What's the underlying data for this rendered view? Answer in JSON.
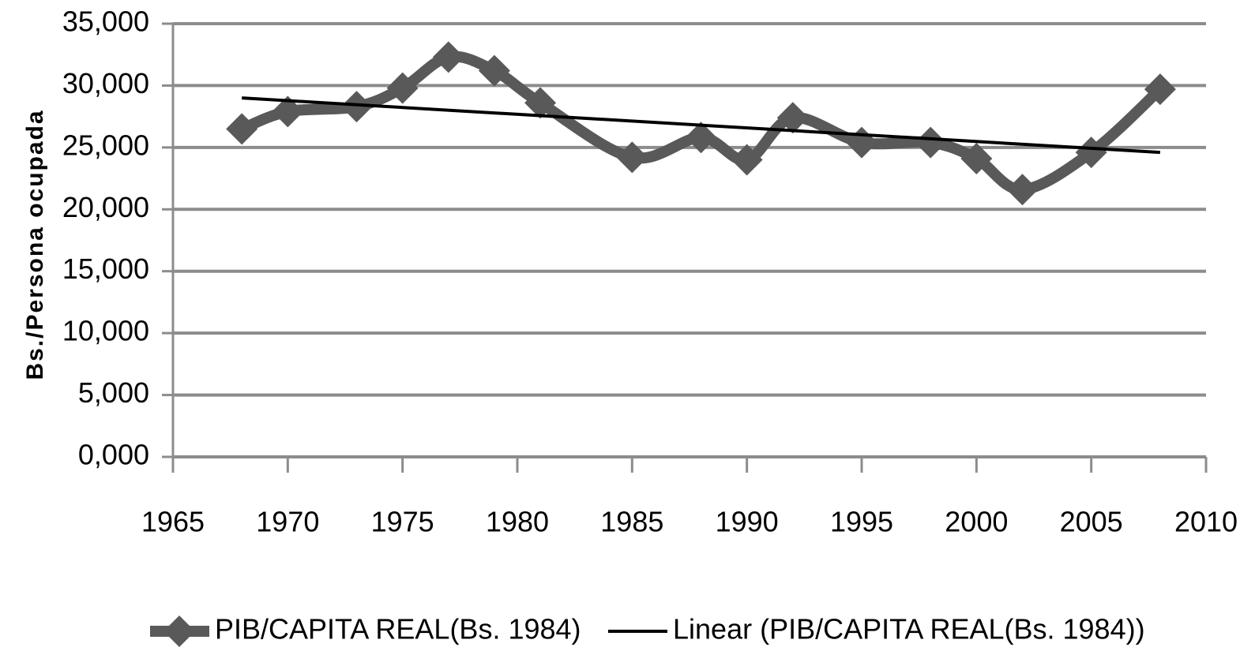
{
  "chart_data": {
    "type": "line",
    "y_label": "Bs./Persona ocupada",
    "xlim": [
      1965,
      2010
    ],
    "xticks": [
      1965,
      1970,
      1975,
      1980,
      1985,
      1990,
      1995,
      2000,
      2005,
      2010
    ],
    "ylim": [
      0,
      35000
    ],
    "yticks": [
      {
        "value": 0,
        "label": "0,000"
      },
      {
        "value": 5000,
        "label": "5,000"
      },
      {
        "value": 10000,
        "label": "10,000"
      },
      {
        "value": 15000,
        "label": "15,000"
      },
      {
        "value": 20000,
        "label": "20,000"
      },
      {
        "value": 25000,
        "label": "25,000"
      },
      {
        "value": 30000,
        "label": "30,000"
      },
      {
        "value": 35000,
        "label": "35,000"
      }
    ],
    "grid": true,
    "legend": "bottom",
    "series": [
      {
        "name": "PIB/CAPITA REAL(Bs. 1984)",
        "color": "#595959",
        "smooth": true,
        "marker": "diamond",
        "x": [
          1968,
          1970,
          1973,
          1975,
          1977,
          1979,
          1981,
          1985,
          1988,
          1990,
          1992,
          1995,
          1998,
          2000,
          2002,
          2005,
          2008
        ],
        "values": [
          26500,
          27900,
          28300,
          29800,
          32300,
          31200,
          28600,
          24200,
          25800,
          24000,
          27400,
          25400,
          25400,
          24100,
          21600,
          24600,
          29700
        ]
      },
      {
        "name": "Linear (PIB/CAPITA REAL(Bs. 1984))",
        "color": "#000000",
        "x": [
          1968,
          2008
        ],
        "values": [
          29000,
          24600
        ]
      }
    ]
  }
}
